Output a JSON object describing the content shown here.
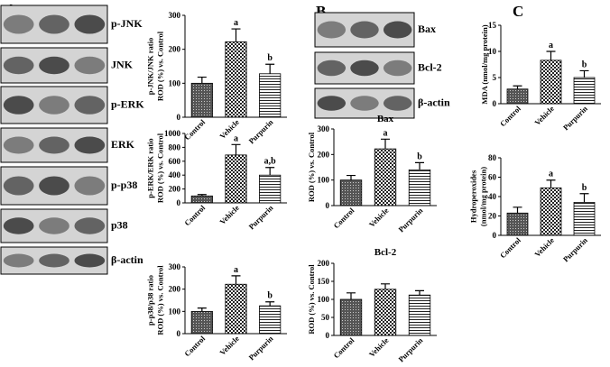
{
  "panels": [
    "A",
    "B",
    "C"
  ],
  "blots_a": [
    "p-JNK",
    "JNK",
    "p-ERK",
    "ERK",
    "p-p38",
    "p38",
    "β-actin"
  ],
  "blots_b": [
    "Bax",
    "Bcl-2",
    "β-actin"
  ],
  "chart_data": [
    {
      "type": "bar",
      "ylabel": [
        "p-JNK/JNK ratio",
        "ROD (%) vs. Control"
      ],
      "categories": [
        "Control",
        "Vehicle",
        "Purpurin"
      ],
      "values": [
        100,
        222,
        128
      ],
      "errors": [
        18,
        38,
        28
      ],
      "annotations": [
        null,
        "a",
        "b"
      ],
      "ylim": [
        0,
        300
      ],
      "yticks": [
        0,
        100,
        200,
        300
      ]
    },
    {
      "type": "bar",
      "ylabel": [
        "p-ERK/ERK ratio",
        "ROD (%) vs. Control"
      ],
      "categories": [
        "Control",
        "Vehicle",
        "Purpurin"
      ],
      "values": [
        100,
        690,
        400
      ],
      "errors": [
        20,
        150,
        110
      ],
      "annotations": [
        null,
        "a",
        "a,b"
      ],
      "ylim": [
        0,
        1000
      ],
      "yticks": [
        0,
        200,
        400,
        600,
        800,
        1000
      ]
    },
    {
      "type": "bar",
      "ylabel": [
        "p-p38/p38 ratio",
        "ROD (%) vs. Control"
      ],
      "categories": [
        "Control",
        "Vehicle",
        "Purpurin"
      ],
      "values": [
        100,
        222,
        125
      ],
      "errors": [
        15,
        38,
        18
      ],
      "annotations": [
        null,
        "a",
        "b"
      ],
      "ylim": [
        0,
        300
      ],
      "yticks": [
        0,
        100,
        200,
        300
      ]
    },
    {
      "type": "bar",
      "title": "Bax",
      "ylabel": [
        "ROD (%) vs. Control"
      ],
      "categories": [
        "Control",
        "Vehicle",
        "Purpurin"
      ],
      "values": [
        100,
        222,
        140
      ],
      "errors": [
        18,
        38,
        28
      ],
      "annotations": [
        null,
        "a",
        "b"
      ],
      "ylim": [
        0,
        300
      ],
      "yticks": [
        0,
        100,
        200,
        300
      ]
    },
    {
      "type": "bar",
      "title": "Bcl-2",
      "ylabel": [
        "ROD (%) vs. Control"
      ],
      "categories": [
        "Control",
        "Vehicle",
        "Purpurin"
      ],
      "values": [
        100,
        128,
        112
      ],
      "errors": [
        18,
        15,
        12
      ],
      "ylim": [
        0,
        200
      ],
      "yticks": [
        0,
        50,
        100,
        150,
        200
      ]
    },
    {
      "type": "bar",
      "ylabel": [
        "MDA (nmol/mg protein)"
      ],
      "categories": [
        "Control",
        "Vehicle",
        "Purpurin"
      ],
      "values": [
        2.8,
        8.3,
        5.0
      ],
      "errors": [
        0.6,
        1.7,
        1.3
      ],
      "annotations": [
        null,
        "a",
        "b"
      ],
      "ylim": [
        0,
        15
      ],
      "yticks": [
        0,
        5,
        10,
        15
      ]
    },
    {
      "type": "bar",
      "ylabel": [
        "Hydroperoxides",
        "(nmol/mg protein)"
      ],
      "categories": [
        "Control",
        "Vehicle",
        "Purpurin"
      ],
      "values": [
        23,
        49,
        34
      ],
      "errors": [
        6,
        8,
        9
      ],
      "annotations": [
        null,
        "a",
        "b"
      ],
      "ylim": [
        0,
        80
      ],
      "yticks": [
        0,
        20,
        40,
        60,
        80
      ]
    }
  ]
}
